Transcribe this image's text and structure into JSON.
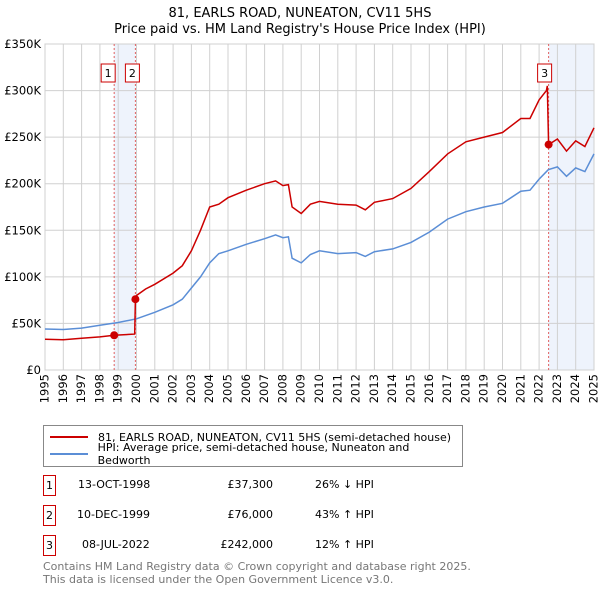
{
  "title_line1": "81, EARLS ROAD, NUNEATON, CV11 5HS",
  "title_line2": "Price paid vs. HM Land Registry's House Price Index (HPI)",
  "chart_data": {
    "type": "line",
    "title": "81, EARLS ROAD, NUNEATON, CV11 5HS — Price paid vs. HM Land Registry's House Price Index (HPI)",
    "xlim": [
      1995,
      2025
    ],
    "ylim": [
      0,
      350000
    ],
    "x_ticks": [
      "1995",
      "1996",
      "1997",
      "1998",
      "1999",
      "2000",
      "2001",
      "2002",
      "2003",
      "2004",
      "2005",
      "2006",
      "2007",
      "2008",
      "2009",
      "2010",
      "2011",
      "2012",
      "2013",
      "2014",
      "2015",
      "2016",
      "2017",
      "2018",
      "2019",
      "2020",
      "2021",
      "2022",
      "2023",
      "2024",
      "2025"
    ],
    "y_ticks": [
      {
        "value": 0,
        "label": "£0"
      },
      {
        "value": 50000,
        "label": "£50K"
      },
      {
        "value": 100000,
        "label": "£100K"
      },
      {
        "value": 150000,
        "label": "£150K"
      },
      {
        "value": 200000,
        "label": "£200K"
      },
      {
        "value": 250000,
        "label": "£250K"
      },
      {
        "value": 300000,
        "label": "£300K"
      },
      {
        "value": 350000,
        "label": "£350K"
      }
    ],
    "grid": true,
    "series": [
      {
        "name": "81, EARLS ROAD, NUNEATON, CV11 5HS (semi-detached house)",
        "color": "#cc0000",
        "x": [
          1995,
          1996,
          1997,
          1998,
          1998.78,
          1999.9,
          1999.94,
          2000,
          2000.5,
          2001,
          2002,
          2002.5,
          2003,
          2003.5,
          2004,
          2004.5,
          2005,
          2006,
          2007,
          2007.6,
          2008,
          2008.3,
          2008.5,
          2009,
          2009.5,
          2010,
          2011,
          2012,
          2012.5,
          2013,
          2014,
          2015,
          2016,
          2017,
          2018,
          2019,
          2020,
          2021,
          2021.5,
          2022,
          2022.4,
          2022.45,
          2022.52,
          2023,
          2023.5,
          2024,
          2024.5,
          2025
        ],
        "y": [
          33000,
          32500,
          34000,
          35500,
          37300,
          38500,
          76000,
          80000,
          87000,
          92000,
          104000,
          112000,
          128000,
          150000,
          175000,
          178000,
          185000,
          193000,
          200000,
          203000,
          198000,
          199000,
          175000,
          168000,
          178000,
          181000,
          178000,
          177000,
          172000,
          180000,
          184000,
          195000,
          213000,
          232000,
          245000,
          250000,
          255000,
          270000,
          270000,
          290000,
          300000,
          305000,
          242000,
          248000,
          235000,
          246000,
          240000,
          260000
        ]
      },
      {
        "name": "HPI: Average price, semi-detached house, Nuneaton and Bedworth",
        "color": "#5b8ed6",
        "x": [
          1995,
          1996,
          1997,
          1998,
          1999,
          2000,
          2001,
          2002,
          2002.5,
          2003,
          2003.5,
          2004,
          2004.5,
          2005,
          2006,
          2007,
          2007.6,
          2008,
          2008.3,
          2008.5,
          2009,
          2009.5,
          2010,
          2011,
          2012,
          2012.5,
          2013,
          2014,
          2015,
          2016,
          2017,
          2018,
          2019,
          2020,
          2021,
          2021.5,
          2022,
          2022.5,
          2023,
          2023.5,
          2024,
          2024.5,
          2025
        ],
        "y": [
          44000,
          43500,
          45000,
          48000,
          51000,
          55000,
          62000,
          70000,
          76000,
          88000,
          100000,
          115000,
          125000,
          128000,
          135000,
          141000,
          145000,
          142000,
          143000,
          120000,
          115000,
          124000,
          128000,
          125000,
          126000,
          122000,
          127000,
          130000,
          137000,
          148000,
          162000,
          170000,
          175000,
          179000,
          192000,
          193000,
          205000,
          215000,
          218000,
          208000,
          217000,
          213000,
          232000
        ]
      }
    ],
    "sales": [
      {
        "n": "1",
        "x": 1998.78,
        "price": 37300,
        "date": "13-OCT-1998",
        "price_label": "£37,300",
        "hpi": "26% ↓ HPI"
      },
      {
        "n": "2",
        "x": 1999.94,
        "price": 76000,
        "date": "10-DEC-1999",
        "price_label": "£76,000",
        "hpi": "43% ↑ HPI"
      },
      {
        "n": "3",
        "x": 2022.52,
        "price": 242000,
        "date": "08-JUL-2022",
        "price_label": "£242,000",
        "hpi": "12% ↑ HPI"
      }
    ],
    "legend_position": "below"
  },
  "legend": {
    "red": "81, EARLS ROAD, NUNEATON, CV11 5HS (semi-detached house)",
    "blue": "HPI: Average price, semi-detached house, Nuneaton and Bedworth"
  },
  "footer": {
    "line1": "Contains HM Land Registry data © Crown copyright and database right 2025.",
    "line2": "This data is licensed under the Open Government Licence v3.0."
  }
}
